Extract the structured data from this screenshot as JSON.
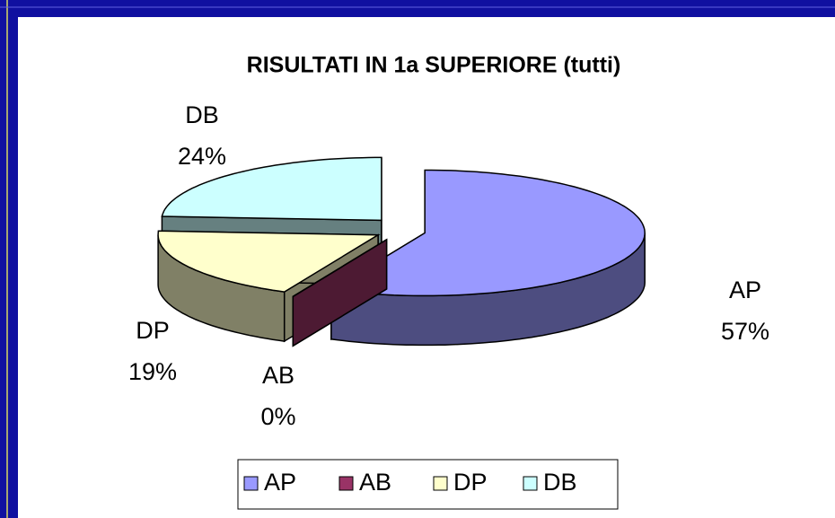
{
  "chart_data": {
    "type": "pie",
    "title": "RISULTATI IN 1a SUPERIORE (tutti)",
    "categories": [
      "AP",
      "AB",
      "DP",
      "DB"
    ],
    "values": [
      57,
      0,
      19,
      24
    ],
    "value_labels": [
      "57%",
      "0%",
      "19%",
      "24%"
    ],
    "colors": [
      "#9999ff",
      "#993366",
      "#ffffcc",
      "#ccffff"
    ],
    "legend": "bottom"
  }
}
